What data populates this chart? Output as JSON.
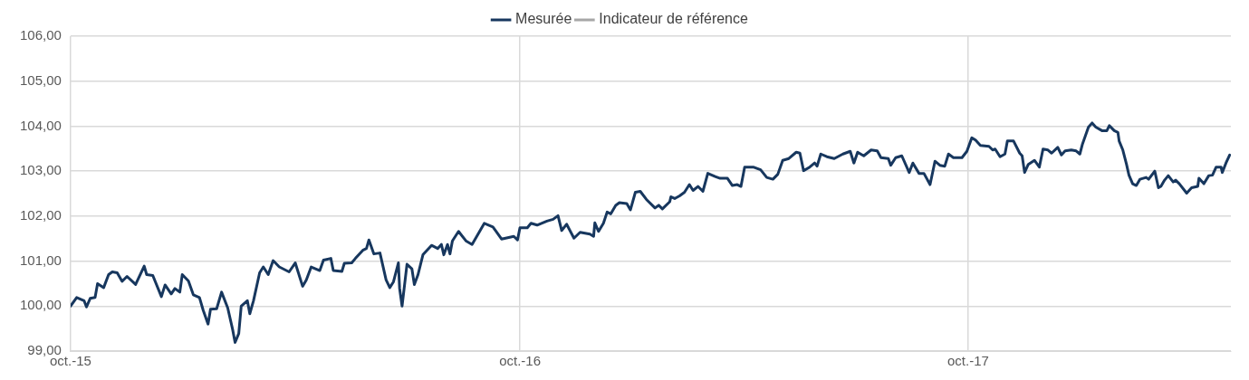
{
  "chart_data": {
    "type": "line",
    "legend": "top",
    "grid": true,
    "line_style": "solid",
    "marker": "none",
    "xlim": [
      "2015-10-01",
      "2018-05-03"
    ],
    "xticks": [
      {
        "value": "2015-10-01",
        "label": "oct.-15"
      },
      {
        "value": "2016-10-01",
        "label": "oct.-16"
      },
      {
        "value": "2017-10-01",
        "label": "oct.-17"
      }
    ],
    "ylim": [
      99,
      106
    ],
    "yticks": [
      {
        "value": 99,
        "label": "99,00"
      },
      {
        "value": 100,
        "label": "100,00"
      },
      {
        "value": 101,
        "label": "101,00"
      },
      {
        "value": 102,
        "label": "102,00"
      },
      {
        "value": 103,
        "label": "103,00"
      },
      {
        "value": 104,
        "label": "104,00"
      },
      {
        "value": 105,
        "label": "105,00"
      },
      {
        "value": 106,
        "label": "106,00"
      }
    ],
    "x": [
      "2015-10-01",
      "2015-10-06",
      "2015-10-12",
      "2015-10-14",
      "2015-10-17",
      "2015-10-21",
      "2015-10-23",
      "2015-10-28",
      "2015-11-01",
      "2015-11-04",
      "2015-11-08",
      "2015-11-12",
      "2015-11-16",
      "2015-11-23",
      "2015-11-30",
      "2015-12-02",
      "2015-12-07",
      "2015-12-14",
      "2015-12-17",
      "2015-12-22",
      "2015-12-25",
      "2015-12-29",
      "2015-12-31",
      "2016-01-05",
      "2016-01-09",
      "2016-01-14",
      "2016-01-17",
      "2016-01-21",
      "2016-01-23",
      "2016-01-28",
      "2016-02-01",
      "2016-02-06",
      "2016-02-10",
      "2016-02-12",
      "2016-02-15",
      "2016-02-17",
      "2016-02-22",
      "2016-02-24",
      "2016-02-27",
      "2016-03-03",
      "2016-03-06",
      "2016-03-10",
      "2016-03-14",
      "2016-03-19",
      "2016-03-27",
      "2016-04-01",
      "2016-04-07",
      "2016-04-10",
      "2016-04-14",
      "2016-04-21",
      "2016-04-24",
      "2016-04-30",
      "2016-05-02",
      "2016-05-09",
      "2016-05-11",
      "2016-05-17",
      "2016-05-20",
      "2016-05-26",
      "2016-05-29",
      "2016-05-31",
      "2016-06-04",
      "2016-06-09",
      "2016-06-14",
      "2016-06-17",
      "2016-06-20",
      "2016-06-24",
      "2016-06-25",
      "2016-06-27",
      "2016-07-01",
      "2016-07-05",
      "2016-07-07",
      "2016-07-10",
      "2016-07-14",
      "2016-07-21",
      "2016-07-26",
      "2016-07-29",
      "2016-07-31",
      "2016-08-03",
      "2016-08-05",
      "2016-08-07",
      "2016-08-12",
      "2016-08-18",
      "2016-08-23",
      "2016-09-02",
      "2016-09-09",
      "2016-09-16",
      "2016-09-26",
      "2016-09-29",
      "2016-10-01",
      "2016-10-07",
      "2016-10-10",
      "2016-10-15",
      "2016-10-23",
      "2016-10-28",
      "2016-11-01",
      "2016-11-04",
      "2016-11-08",
      "2016-11-14",
      "2016-11-19",
      "2016-11-27",
      "2016-11-30",
      "2016-12-01",
      "2016-12-04",
      "2016-12-08",
      "2016-12-11",
      "2016-12-14",
      "2016-12-18",
      "2016-12-21",
      "2016-12-27",
      "2016-12-30",
      "2017-01-03",
      "2017-01-07",
      "2017-01-12",
      "2017-01-19",
      "2017-01-22",
      "2017-01-25",
      "2017-01-31",
      "2017-02-01",
      "2017-02-04",
      "2017-02-08",
      "2017-02-12",
      "2017-02-16",
      "2017-02-19",
      "2017-02-23",
      "2017-02-27",
      "2017-03-03",
      "2017-03-09",
      "2017-03-13",
      "2017-03-19",
      "2017-03-23",
      "2017-03-27",
      "2017-03-30",
      "2017-04-02",
      "2017-04-09",
      "2017-04-15",
      "2017-04-20",
      "2017-04-25",
      "2017-04-29",
      "2017-05-03",
      "2017-05-08",
      "2017-05-14",
      "2017-05-17",
      "2017-05-20",
      "2017-05-25",
      "2017-05-29",
      "2017-05-31",
      "2017-06-03",
      "2017-06-08",
      "2017-06-14",
      "2017-06-21",
      "2017-06-27",
      "2017-06-30",
      "2017-07-03",
      "2017-07-08",
      "2017-07-14",
      "2017-07-19",
      "2017-07-22",
      "2017-07-28",
      "2017-07-30",
      "2017-08-03",
      "2017-08-08",
      "2017-08-14",
      "2017-08-17",
      "2017-08-22",
      "2017-08-26",
      "2017-08-31",
      "2017-09-04",
      "2017-09-08",
      "2017-09-12",
      "2017-09-15",
      "2017-09-19",
      "2017-09-26",
      "2017-09-30",
      "2017-10-04",
      "2017-10-07",
      "2017-10-11",
      "2017-10-18",
      "2017-10-21",
      "2017-10-23",
      "2017-10-27",
      "2017-10-31",
      "2017-11-02",
      "2017-11-07",
      "2017-11-12",
      "2017-11-14",
      "2017-11-16",
      "2017-11-19",
      "2017-11-24",
      "2017-11-28",
      "2017-12-01",
      "2017-12-05",
      "2017-12-08",
      "2017-12-13",
      "2017-12-16",
      "2017-12-19",
      "2017-12-24",
      "2017-12-28",
      "2017-12-31",
      "2018-01-02",
      "2018-01-07",
      "2018-01-10",
      "2018-01-13",
      "2018-01-18",
      "2018-01-22",
      "2018-01-24",
      "2018-01-28",
      "2018-01-31",
      "2018-02-01",
      "2018-02-04",
      "2018-02-07",
      "2018-02-09",
      "2018-02-12",
      "2018-02-15",
      "2018-02-18",
      "2018-02-23",
      "2018-02-25",
      "2018-03-02",
      "2018-03-05",
      "2018-03-07",
      "2018-03-10",
      "2018-03-13",
      "2018-03-17",
      "2018-03-19",
      "2018-03-22",
      "2018-03-28",
      "2018-04-01",
      "2018-04-06",
      "2018-04-07",
      "2018-04-11",
      "2018-04-15",
      "2018-04-18",
      "2018-04-21",
      "2018-04-25",
      "2018-04-26",
      "2018-04-29",
      "2018-05-02"
    ],
    "series": [
      {
        "name": "Mesurée",
        "color": "#17375e",
        "values": [
          100.0,
          100.19,
          100.12,
          99.98,
          100.17,
          100.19,
          100.5,
          100.41,
          100.7,
          100.76,
          100.74,
          100.55,
          100.66,
          100.48,
          100.89,
          100.7,
          100.68,
          100.21,
          100.47,
          100.27,
          100.39,
          100.31,
          100.7,
          100.56,
          100.25,
          100.19,
          99.91,
          99.6,
          99.93,
          99.94,
          100.31,
          99.96,
          99.48,
          99.19,
          99.39,
          100.0,
          100.12,
          99.83,
          100.12,
          100.74,
          100.87,
          100.7,
          101.01,
          100.87,
          100.76,
          100.96,
          100.44,
          100.58,
          100.87,
          100.79,
          101.02,
          101.06,
          100.79,
          100.77,
          100.95,
          100.96,
          101.06,
          101.24,
          101.28,
          101.47,
          101.16,
          101.18,
          100.58,
          100.41,
          100.54,
          100.96,
          100.39,
          100.0,
          100.93,
          100.83,
          100.48,
          100.7,
          101.14,
          101.35,
          101.28,
          101.37,
          101.14,
          101.37,
          101.16,
          101.45,
          101.66,
          101.45,
          101.37,
          101.84,
          101.76,
          101.49,
          101.55,
          101.47,
          101.74,
          101.74,
          101.84,
          101.8,
          101.89,
          101.93,
          102.01,
          101.68,
          101.82,
          101.51,
          101.64,
          101.6,
          101.55,
          101.85,
          101.66,
          101.84,
          102.09,
          102.05,
          102.24,
          102.3,
          102.28,
          102.14,
          102.53,
          102.55,
          102.37,
          102.18,
          102.24,
          102.16,
          102.32,
          102.43,
          102.39,
          102.45,
          102.53,
          102.7,
          102.57,
          102.66,
          102.55,
          102.95,
          102.88,
          102.84,
          102.84,
          102.68,
          102.7,
          102.66,
          103.09,
          103.09,
          103.03,
          102.86,
          102.82,
          102.93,
          103.24,
          103.28,
          103.42,
          103.4,
          103.01,
          103.09,
          103.18,
          103.11,
          103.38,
          103.32,
          103.28,
          103.38,
          103.44,
          103.18,
          103.42,
          103.34,
          103.47,
          103.45,
          103.3,
          103.28,
          103.13,
          103.3,
          103.34,
          102.97,
          103.18,
          102.95,
          102.95,
          102.7,
          103.22,
          103.13,
          103.11,
          103.38,
          103.3,
          103.3,
          103.44,
          103.74,
          103.69,
          103.57,
          103.55,
          103.47,
          103.49,
          103.32,
          103.38,
          103.67,
          103.67,
          103.4,
          103.34,
          102.97,
          103.15,
          103.24,
          103.09,
          103.49,
          103.47,
          103.4,
          103.53,
          103.36,
          103.45,
          103.47,
          103.45,
          103.38,
          103.59,
          103.98,
          104.07,
          103.98,
          103.9,
          103.9,
          104.01,
          103.9,
          103.86,
          103.67,
          103.47,
          103.15,
          102.91,
          102.72,
          102.68,
          102.82,
          102.86,
          102.82,
          103.0,
          102.63,
          102.66,
          102.8,
          102.9,
          102.76,
          102.8,
          102.72,
          102.51,
          102.63,
          102.66,
          102.84,
          102.72,
          102.9,
          102.91,
          103.09,
          103.09,
          102.97,
          103.18,
          103.36
        ]
      },
      {
        "name": "Indicateur de référence",
        "color": "#a6a6a6",
        "values": [
          null,
          null,
          null,
          null,
          null,
          null,
          null,
          null,
          null,
          null,
          null,
          null,
          null,
          null,
          null,
          null,
          null,
          null,
          null,
          null,
          null,
          null,
          null,
          null,
          null,
          null,
          null,
          null,
          null,
          null,
          null,
          null,
          null,
          null,
          null,
          null,
          null,
          null,
          null,
          null,
          null,
          null,
          null,
          null,
          null,
          null,
          null,
          null,
          null,
          null,
          null,
          null,
          null,
          null,
          null,
          null,
          null,
          null,
          null,
          null,
          null,
          null,
          null,
          null,
          null,
          null,
          null,
          null,
          null,
          null,
          null,
          null,
          null,
          null,
          null,
          null,
          null,
          null,
          null,
          null,
          null,
          null,
          null,
          null,
          null,
          null,
          null,
          null,
          null,
          null,
          null,
          null,
          null,
          null,
          null,
          null,
          null,
          null,
          null,
          null,
          null,
          null,
          null,
          null,
          null,
          null,
          null,
          null,
          null,
          null,
          null,
          null,
          null,
          null,
          null,
          null,
          null,
          null,
          null,
          null,
          null,
          null,
          null,
          null,
          null,
          null,
          null,
          null,
          null,
          null,
          null,
          null,
          null,
          null,
          null,
          null,
          null,
          null,
          null,
          null,
          null,
          null,
          null,
          null,
          null,
          null,
          null,
          null,
          null,
          null,
          null,
          null,
          null,
          null,
          null,
          null,
          null,
          null,
          null,
          null,
          null,
          null,
          null,
          null,
          null,
          null,
          null,
          null,
          null,
          null,
          null,
          null,
          null,
          null,
          null,
          null,
          null,
          null,
          null,
          null,
          null,
          null,
          null,
          null,
          null,
          null,
          null,
          null,
          null,
          null,
          null,
          null,
          null,
          null,
          null,
          null,
          null,
          null,
          null,
          null,
          null,
          null,
          null,
          null,
          null,
          null,
          null,
          null,
          null,
          null,
          null,
          null,
          null,
          null,
          null,
          null,
          null,
          null,
          null,
          null,
          null,
          null,
          null,
          null,
          null,
          null,
          null,
          null,
          null,
          null,
          null,
          null,
          null,
          null,
          null,
          null
        ]
      }
    ]
  }
}
